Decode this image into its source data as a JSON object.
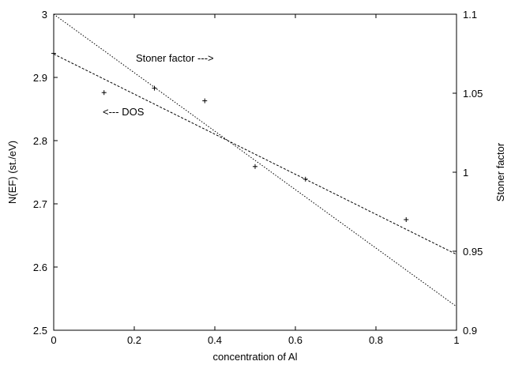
{
  "chart_data": {
    "type": "scatter",
    "xlabel": "concentration of Al",
    "ylabel": "N(EF) (st./eV)",
    "y2label": "Stoner factor",
    "xlim": [
      0,
      1
    ],
    "ylim": [
      2.5,
      3.0
    ],
    "y2lim": [
      0.9,
      1.1
    ],
    "x_ticks": [
      "0",
      "0.2",
      "0.4",
      "0.6",
      "0.8",
      "1"
    ],
    "y_ticks": [
      "2.5",
      "2.6",
      "2.7",
      "2.8",
      "2.9",
      "3"
    ],
    "y2_ticks": [
      "0.9",
      "0.95",
      "1",
      "1.05",
      "1.1"
    ],
    "grid": false,
    "points": [
      {
        "x": 0.0,
        "y": 2.938
      },
      {
        "x": 0.125,
        "y": 2.876
      },
      {
        "x": 0.25,
        "y": 2.883
      },
      {
        "x": 0.375,
        "y": 2.863
      },
      {
        "x": 0.5,
        "y": 2.759
      },
      {
        "x": 0.625,
        "y": 2.739
      },
      {
        "x": 0.875,
        "y": 2.675
      }
    ],
    "lines": [
      {
        "axis": "left",
        "x": [
          0,
          1
        ],
        "y": [
          2.937,
          2.62
        ]
      },
      {
        "axis": "right",
        "x": [
          0,
          1
        ],
        "y": [
          1.1,
          0.915
        ]
      }
    ],
    "annotations": [
      {
        "text": "Stoner factor --->",
        "x": 0.28,
        "y": 2.9
      },
      {
        "text": "<--- DOS",
        "x": 0.16,
        "y": 2.855
      }
    ]
  }
}
